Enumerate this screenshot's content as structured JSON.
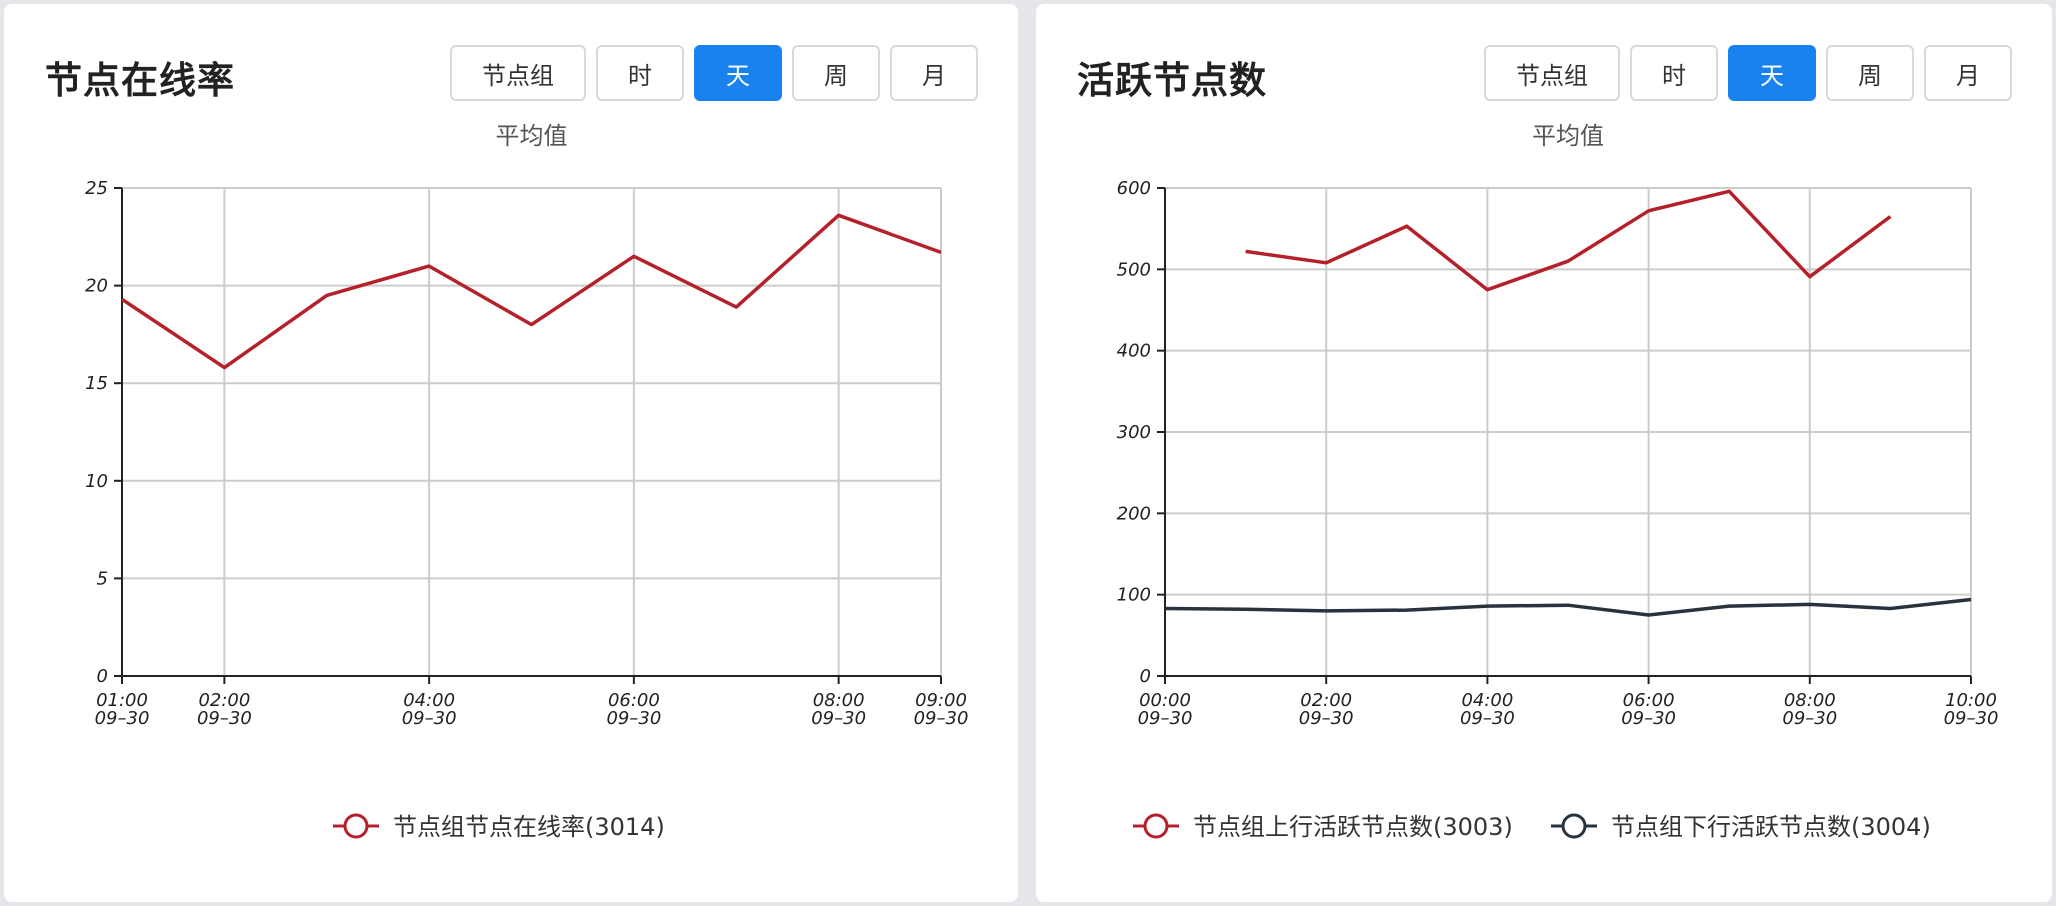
{
  "panels": [
    {
      "title": "节点在线率",
      "buttons": [
        {
          "label": "节点组",
          "active": false
        },
        {
          "label": "时",
          "active": false
        },
        {
          "label": "天",
          "active": true
        },
        {
          "label": "周",
          "active": false
        },
        {
          "label": "月",
          "active": false
        }
      ]
    },
    {
      "title": "活跃节点数",
      "buttons": [
        {
          "label": "节点组",
          "active": false
        },
        {
          "label": "时",
          "active": false
        },
        {
          "label": "天",
          "active": true
        },
        {
          "label": "周",
          "active": false
        },
        {
          "label": "月",
          "active": false
        }
      ]
    }
  ],
  "chart_data": [
    {
      "type": "line",
      "subtitle": "平均值",
      "xlim": [
        "09-30 01:00",
        "09-30 09:00"
      ],
      "ylim": [
        0,
        25
      ],
      "yticks": [
        0,
        5,
        10,
        15,
        20,
        25
      ],
      "xticks": [
        {
          "time": "01:00",
          "date": "09–30",
          "hour": 1
        },
        {
          "time": "02:00",
          "date": "09–30",
          "hour": 2
        },
        {
          "time": "04:00",
          "date": "09–30",
          "hour": 4
        },
        {
          "time": "06:00",
          "date": "09–30",
          "hour": 6
        },
        {
          "time": "08:00",
          "date": "09–30",
          "hour": 8
        },
        {
          "time": "09:00",
          "date": "09–30",
          "hour": 9
        }
      ],
      "grid": true,
      "legend_position": "bottom-center",
      "series": [
        {
          "name": "节点组节点在线率(3014)",
          "color": "#b5212a",
          "x": [
            "09-30 01:00",
            "09-30 02:00",
            "09-30 03:00",
            "09-30 04:00",
            "09-30 05:00",
            "09-30 06:00",
            "09-30 07:00",
            "09-30 08:00",
            "09-30 09:00"
          ],
          "hours": [
            1,
            2,
            3,
            4,
            5,
            6,
            7,
            8,
            9
          ],
          "values": [
            19.3,
            15.8,
            19.5,
            21.0,
            18.0,
            21.5,
            18.9,
            23.6,
            21.7
          ]
        }
      ]
    },
    {
      "type": "line",
      "subtitle": "平均值",
      "xlim": [
        "09-30 00:00",
        "09-30 10:00"
      ],
      "ylim": [
        0,
        600
      ],
      "yticks": [
        0,
        100,
        200,
        300,
        400,
        500,
        600
      ],
      "xticks": [
        {
          "time": "00:00",
          "date": "09–30",
          "hour": 0
        },
        {
          "time": "02:00",
          "date": "09–30",
          "hour": 2
        },
        {
          "time": "04:00",
          "date": "09–30",
          "hour": 4
        },
        {
          "time": "06:00",
          "date": "09–30",
          "hour": 6
        },
        {
          "time": "08:00",
          "date": "09–30",
          "hour": 8
        },
        {
          "time": "10:00",
          "date": "09–30",
          "hour": 10
        }
      ],
      "grid": true,
      "legend_position": "bottom-center",
      "series": [
        {
          "name": "节点组上行活跃节点数(3003)",
          "color": "#b5212a",
          "x": [
            "09-30 01:00",
            "09-30 02:00",
            "09-30 03:00",
            "09-30 04:00",
            "09-30 05:00",
            "09-30 06:00",
            "09-30 07:00",
            "09-30 08:00",
            "09-30 09:00"
          ],
          "hours": [
            1,
            2,
            3,
            4,
            5,
            6,
            7,
            8,
            9
          ],
          "values": [
            522,
            508,
            553,
            475,
            510,
            572,
            596,
            491,
            565
          ]
        },
        {
          "name": "节点组下行活跃节点数(3004)",
          "color": "#27333f",
          "x": [
            "09-30 00:00",
            "09-30 01:00",
            "09-30 02:00",
            "09-30 03:00",
            "09-30 04:00",
            "09-30 05:00",
            "09-30 06:00",
            "09-30 07:00",
            "09-30 08:00",
            "09-30 09:00",
            "09-30 10:00"
          ],
          "hours": [
            0,
            1,
            2,
            3,
            4,
            5,
            6,
            7,
            8,
            9,
            10
          ],
          "values": [
            83,
            82,
            80,
            81,
            86,
            87,
            75,
            86,
            88,
            83,
            94
          ]
        }
      ]
    }
  ]
}
